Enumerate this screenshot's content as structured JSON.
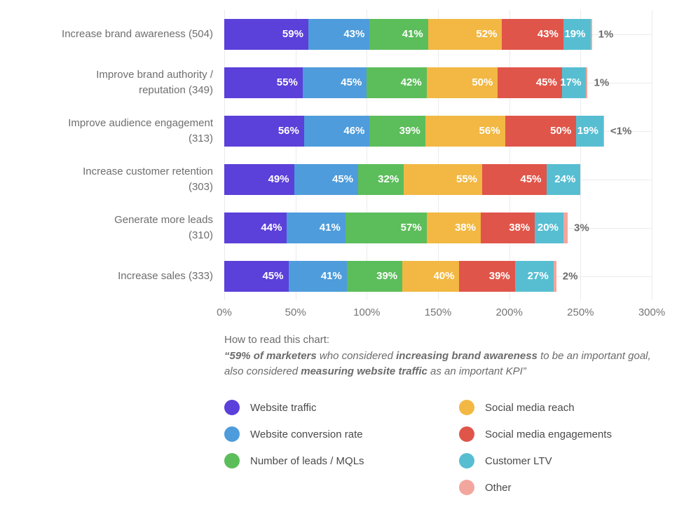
{
  "chart_data": {
    "type": "bar",
    "stacked": true,
    "orientation": "horizontal",
    "title": "",
    "xlabel": "",
    "ylabel": "",
    "xlim": [
      0,
      300
    ],
    "x_ticks": [
      "0%",
      "50%",
      "100%",
      "150%",
      "200%",
      "250%",
      "300%"
    ],
    "grid": "vertical gridlines at each tick plus horizontal gridline through each bar row",
    "legend_position": "bottom, two columns",
    "categories": [
      "Increase brand awareness (504)",
      "Improve brand authority /\nreputation (349)",
      "Improve audience engagement\n(313)",
      "Increase customer retention\n(303)",
      "Generate more leads\n(310)",
      "Increase sales (333)"
    ],
    "series": [
      {
        "name": "Website traffic",
        "color": "#5b40d9",
        "show_value_labels": true,
        "values": [
          59,
          55,
          56,
          49,
          44,
          45
        ]
      },
      {
        "name": "Website conversion rate",
        "color": "#4e9cdb",
        "show_value_labels": true,
        "values": [
          43,
          45,
          46,
          45,
          41,
          41
        ]
      },
      {
        "name": "Number of leads / MQLs",
        "color": "#5cbd5b",
        "show_value_labels": true,
        "values": [
          41,
          42,
          39,
          32,
          57,
          39
        ]
      },
      {
        "name": "Social media reach",
        "color": "#f2b843",
        "show_value_labels": true,
        "values": [
          52,
          50,
          56,
          55,
          38,
          40
        ]
      },
      {
        "name": "Social media engagements",
        "color": "#e0554a",
        "show_value_labels": true,
        "values": [
          43,
          45,
          50,
          45,
          38,
          39
        ]
      },
      {
        "name": "Customer LTV",
        "color": "#57bed2",
        "show_value_labels": true,
        "values": [
          19,
          17,
          19,
          24,
          20,
          27
        ]
      },
      {
        "name": "Other",
        "color": "#f2a69d",
        "show_value_labels": false,
        "values": [
          1,
          1,
          0.5,
          0,
          3,
          2
        ]
      }
    ],
    "outside_labels": [
      "1%",
      "1%",
      "<1%",
      "",
      "3%",
      "2%"
    ]
  },
  "howto": {
    "title": "How to read this chart:",
    "quote": {
      "p1": "“59% of marketers",
      "p2": " who considered ",
      "p3": "increasing brand awareness",
      "p4": " to be an important goal, also considered ",
      "p5": "measuring website traffic",
      "p6": " as an important KPI”"
    }
  },
  "legend": {
    "columns": [
      [
        0,
        1,
        2
      ],
      [
        3,
        4,
        5,
        6
      ]
    ]
  },
  "colors": {
    "gridline": "#ebebeb",
    "segment_label_text": "#ffffff",
    "outside_label_text": "#6b6b6b",
    "category_label_text": "#6e6e6e",
    "axis_tick_text": "#757575",
    "legend_text": "#4a4a4a",
    "background": "#ffffff"
  }
}
